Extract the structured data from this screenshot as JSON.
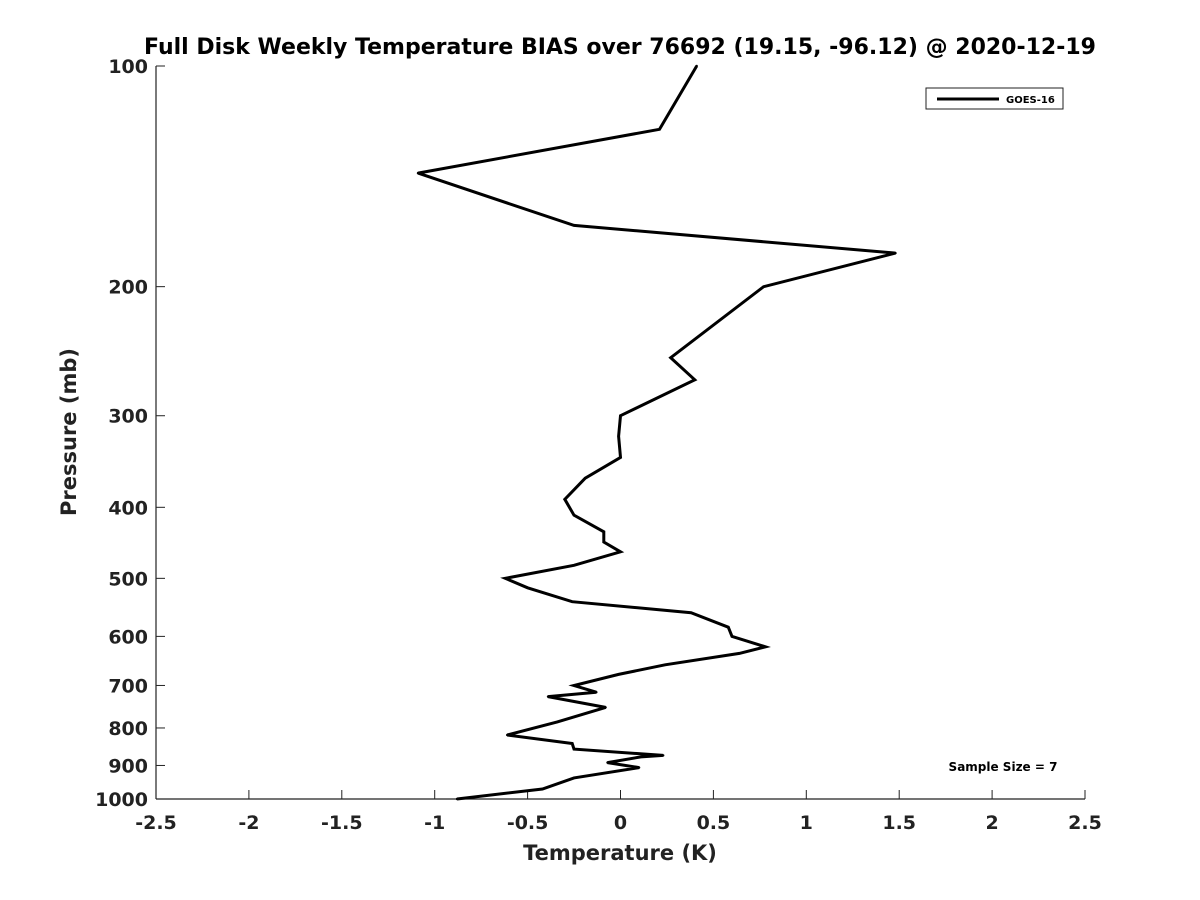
{
  "chart_data": {
    "type": "line",
    "title": "Full Disk Weekly Temperature BIAS over 76692 (19.15, -96.12) @ 2020-12-19",
    "xlabel": "Temperature (K)",
    "ylabel": "Pressure (mb)",
    "xlim": [
      -2.5,
      2.5
    ],
    "ylim": [
      1000,
      100
    ],
    "y_scale": "log",
    "y_reversed": true,
    "grid": false,
    "legend_position": "top-right",
    "x_ticks": [
      "-2.5",
      "-2",
      "-1.5",
      "-1",
      "-0.5",
      "0",
      "0.5",
      "1",
      "1.5",
      "2",
      "2.5"
    ],
    "y_ticks": [
      "100",
      "200",
      "300",
      "400",
      "500",
      "600",
      "700",
      "800",
      "900",
      "1000"
    ],
    "series": [
      {
        "name": "GOES-16",
        "color": "#000000",
        "points": [
          {
            "t": 0.41,
            "p": 100
          },
          {
            "t": 0.21,
            "p": 122
          },
          {
            "t": -1.09,
            "p": 140
          },
          {
            "t": -0.25,
            "p": 165
          },
          {
            "t": 1.48,
            "p": 180
          },
          {
            "t": 0.77,
            "p": 200
          },
          {
            "t": 0.27,
            "p": 250
          },
          {
            "t": 0.4,
            "p": 268
          },
          {
            "t": 0.0,
            "p": 300
          },
          {
            "t": -0.01,
            "p": 320
          },
          {
            "t": 0.0,
            "p": 342
          },
          {
            "t": -0.19,
            "p": 365
          },
          {
            "t": -0.3,
            "p": 390
          },
          {
            "t": -0.25,
            "p": 410
          },
          {
            "t": -0.09,
            "p": 432
          },
          {
            "t": -0.09,
            "p": 446
          },
          {
            "t": 0.0,
            "p": 460
          },
          {
            "t": -0.25,
            "p": 480
          },
          {
            "t": -0.62,
            "p": 500
          },
          {
            "t": -0.5,
            "p": 515
          },
          {
            "t": -0.26,
            "p": 538
          },
          {
            "t": 0.38,
            "p": 557
          },
          {
            "t": 0.58,
            "p": 583
          },
          {
            "t": 0.6,
            "p": 600
          },
          {
            "t": 0.78,
            "p": 620
          },
          {
            "t": 0.64,
            "p": 633
          },
          {
            "t": 0.24,
            "p": 656
          },
          {
            "t": -0.01,
            "p": 676
          },
          {
            "t": -0.25,
            "p": 700
          },
          {
            "t": -0.13,
            "p": 715
          },
          {
            "t": -0.39,
            "p": 725
          },
          {
            "t": -0.08,
            "p": 750
          },
          {
            "t": -0.34,
            "p": 785
          },
          {
            "t": -0.61,
            "p": 818
          },
          {
            "t": -0.26,
            "p": 840
          },
          {
            "t": -0.25,
            "p": 855
          },
          {
            "t": 0.23,
            "p": 872
          },
          {
            "t": 0.11,
            "p": 876
          },
          {
            "t": -0.07,
            "p": 892
          },
          {
            "t": 0.1,
            "p": 906
          },
          {
            "t": -0.25,
            "p": 936
          },
          {
            "t": -0.42,
            "p": 969
          },
          {
            "t": -0.88,
            "p": 1000
          }
        ]
      }
    ],
    "annotation": "Sample Size = 7"
  }
}
